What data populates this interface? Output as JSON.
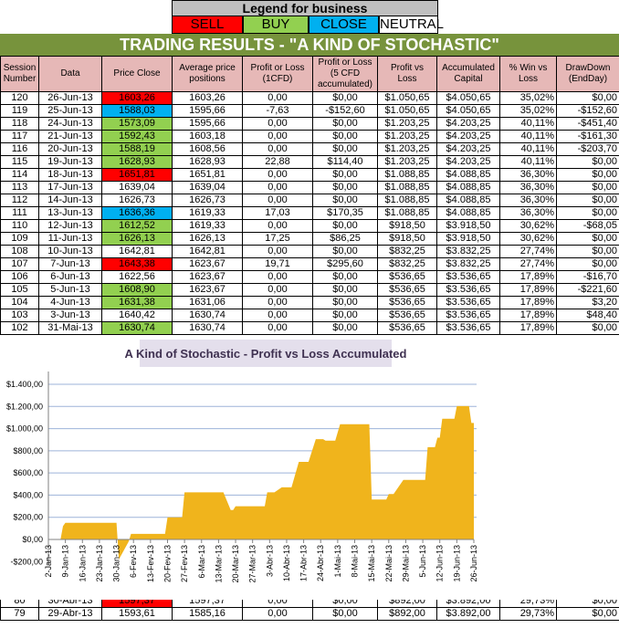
{
  "legend": {
    "title": "Legend for business",
    "items": [
      {
        "label": "SELL",
        "color": "#ff0000"
      },
      {
        "label": "BUY",
        "color": "#92d050"
      },
      {
        "label": "CLOSE",
        "color": "#00b0f0"
      },
      {
        "label": "NEUTRAL",
        "color": "#ffffff"
      }
    ]
  },
  "title": "TRADING RESULTS - \"A KIND OF STOCHASTIC\"",
  "columns": [
    "Session Number",
    "Data",
    "Price Close",
    "Average price positions",
    "Profit or Loss (1CFD)",
    "Profit or Loss (5 CFD accumulated)",
    "Profit vs Loss",
    "Accumulated Capital",
    "% Win vs Loss",
    "DrawDown (EndDay)"
  ],
  "rows": [
    {
      "session": "120",
      "date": "26-Jun-13",
      "price": "1603,26",
      "signal": "SELL",
      "avg": "1603,26",
      "pl1": "0,00",
      "pl5": "$0,00",
      "pvl": "$1.050,65",
      "capital": "$4.050,65",
      "win": "35,02%",
      "dd": "$0,00"
    },
    {
      "session": "119",
      "date": "25-Jun-13",
      "price": "1588,03",
      "signal": "CLOSE",
      "avg": "1595,66",
      "pl1": "-7,63",
      "pl5": "-$152,60",
      "pvl": "$1.050,65",
      "capital": "$4.050,65",
      "win": "35,02%",
      "dd": "-$152,60"
    },
    {
      "session": "118",
      "date": "24-Jun-13",
      "price": "1573,09",
      "signal": "BUY",
      "avg": "1595,66",
      "pl1": "0,00",
      "pl5": "$0,00",
      "pvl": "$1.203,25",
      "capital": "$4.203,25",
      "win": "40,11%",
      "dd": "-$451,40"
    },
    {
      "session": "117",
      "date": "21-Jun-13",
      "price": "1592,43",
      "signal": "BUY",
      "avg": "1603,18",
      "pl1": "0,00",
      "pl5": "$0,00",
      "pvl": "$1.203,25",
      "capital": "$4.203,25",
      "win": "40,11%",
      "dd": "-$161,30"
    },
    {
      "session": "116",
      "date": "20-Jun-13",
      "price": "1588,19",
      "signal": "BUY",
      "avg": "1608,56",
      "pl1": "0,00",
      "pl5": "$0,00",
      "pvl": "$1.203,25",
      "capital": "$4.203,25",
      "win": "40,11%",
      "dd": "-$203,70"
    },
    {
      "session": "115",
      "date": "19-Jun-13",
      "price": "1628,93",
      "signal": "BUY",
      "avg": "1628,93",
      "pl1": "22,88",
      "pl5": "$114,40",
      "pvl": "$1.203,25",
      "capital": "$4.203,25",
      "win": "40,11%",
      "dd": "$0,00"
    },
    {
      "session": "114",
      "date": "18-Jun-13",
      "price": "1651,81",
      "signal": "SELL",
      "avg": "1651,81",
      "pl1": "0,00",
      "pl5": "$0,00",
      "pvl": "$1.088,85",
      "capital": "$4.088,85",
      "win": "36,30%",
      "dd": "$0,00"
    },
    {
      "session": "113",
      "date": "17-Jun-13",
      "price": "1639,04",
      "signal": "NEUTRAL",
      "avg": "1639,04",
      "pl1": "0,00",
      "pl5": "$0,00",
      "pvl": "$1.088,85",
      "capital": "$4.088,85",
      "win": "36,30%",
      "dd": "$0,00"
    },
    {
      "session": "112",
      "date": "14-Jun-13",
      "price": "1626,73",
      "signal": "NEUTRAL",
      "avg": "1626,73",
      "pl1": "0,00",
      "pl5": "$0,00",
      "pvl": "$1.088,85",
      "capital": "$4.088,85",
      "win": "36,30%",
      "dd": "$0,00"
    },
    {
      "session": "111",
      "date": "13-Jun-13",
      "price": "1636,36",
      "signal": "CLOSE",
      "avg": "1619,33",
      "pl1": "17,03",
      "pl5": "$170,35",
      "pvl": "$1.088,85",
      "capital": "$4.088,85",
      "win": "36,30%",
      "dd": "$0,00"
    },
    {
      "session": "110",
      "date": "12-Jun-13",
      "price": "1612,52",
      "signal": "BUY",
      "avg": "1619,33",
      "pl1": "0,00",
      "pl5": "$0,00",
      "pvl": "$918,50",
      "capital": "$3.918,50",
      "win": "30,62%",
      "dd": "-$68,05"
    },
    {
      "session": "109",
      "date": "11-Jun-13",
      "price": "1626,13",
      "signal": "BUY",
      "avg": "1626,13",
      "pl1": "17,25",
      "pl5": "$86,25",
      "pvl": "$918,50",
      "capital": "$3.918,50",
      "win": "30,62%",
      "dd": "$0,00"
    },
    {
      "session": "108",
      "date": "10-Jun-13",
      "price": "1642,81",
      "signal": "NEUTRAL",
      "avg": "1642,81",
      "pl1": "0,00",
      "pl5": "$0,00",
      "pvl": "$832,25",
      "capital": "$3.832,25",
      "win": "27,74%",
      "dd": "$0,00"
    },
    {
      "session": "107",
      "date": "7-Jun-13",
      "price": "1643,38",
      "signal": "SELL",
      "avg": "1623,67",
      "pl1": "19,71",
      "pl5": "$295,60",
      "pvl": "$832,25",
      "capital": "$3.832,25",
      "win": "27,74%",
      "dd": "$0,00"
    },
    {
      "session": "106",
      "date": "6-Jun-13",
      "price": "1622,56",
      "signal": "NEUTRAL",
      "avg": "1623,67",
      "pl1": "0,00",
      "pl5": "$0,00",
      "pvl": "$536,65",
      "capital": "$3.536,65",
      "win": "17,89%",
      "dd": "-$16,70"
    },
    {
      "session": "105",
      "date": "5-Jun-13",
      "price": "1608,90",
      "signal": "BUY",
      "avg": "1623,67",
      "pl1": "0,00",
      "pl5": "$0,00",
      "pvl": "$536,65",
      "capital": "$3.536,65",
      "win": "17,89%",
      "dd": "-$221,60"
    },
    {
      "session": "104",
      "date": "4-Jun-13",
      "price": "1631,38",
      "signal": "BUY",
      "avg": "1631,06",
      "pl1": "0,00",
      "pl5": "$0,00",
      "pvl": "$536,65",
      "capital": "$3.536,65",
      "win": "17,89%",
      "dd": "$3,20"
    },
    {
      "session": "103",
      "date": "3-Jun-13",
      "price": "1640,42",
      "signal": "NEUTRAL",
      "avg": "1630,74",
      "pl1": "0,00",
      "pl5": "$0,00",
      "pvl": "$536,65",
      "capital": "$3.536,65",
      "win": "17,89%",
      "dd": "$48,40"
    },
    {
      "session": "102",
      "date": "31-Mai-13",
      "price": "1630,74",
      "signal": "BUY",
      "avg": "1630,74",
      "pl1": "0,00",
      "pl5": "$0,00",
      "pvl": "$536,65",
      "capital": "$3.536,65",
      "win": "17,89%",
      "dd": "$0,00"
    }
  ],
  "bottom_rows": [
    {
      "session": "80",
      "date": "30-Abr-13",
      "price": "1597,37",
      "signal": "SELL",
      "avg": "1597,37",
      "pl1": "0,00",
      "pl5": "$0,00",
      "pvl": "$892,00",
      "capital": "$3.892,00",
      "win": "29,73%",
      "dd": "$0,00"
    },
    {
      "session": "79",
      "date": "29-Abr-13",
      "price": "1593,61",
      "signal": "NEUTRAL",
      "avg": "1585,16",
      "pl1": "0,00",
      "pl5": "$0,00",
      "pvl": "$892,00",
      "capital": "$3.892,00",
      "win": "29,73%",
      "dd": "$0,00"
    }
  ],
  "chart_data": {
    "type": "area",
    "title": "A Kind of Stochastic - Profit vs Loss Accumulated",
    "fill_color": "#f0b41c",
    "grid": true,
    "ylim": [
      -200,
      1400
    ],
    "yticks": [
      "$1.400,00",
      "$1.200,00",
      "$1.000,00",
      "$800,00",
      "$600,00",
      "$400,00",
      "$200,00",
      "$0,00",
      "-$200,00"
    ],
    "ytick_values": [
      1400,
      1200,
      1000,
      800,
      600,
      400,
      200,
      0,
      -200
    ],
    "xlim": [
      "2013-01-02",
      "2013-06-26"
    ],
    "xticks": [
      "2-Jan-13",
      "9-Jan-13",
      "16-Jan-13",
      "23-Jan-13",
      "30-Jan-13",
      "6-Fev-13",
      "13-Fev-13",
      "20-Fev-13",
      "27-Fev-13",
      "6-Mar-13",
      "13-Mar-13",
      "20-Mar-13",
      "27-Mar-13",
      "3-Abr-13",
      "10-Abr-13",
      "17-Abr-13",
      "24-Abr-13",
      "1-Mai-13",
      "8-Mai-13",
      "15-Mai-13",
      "22-Mai-13",
      "29-Mai-13",
      "5-Jun-13",
      "12-Jun-13",
      "19-Jun-13",
      "26-Jun-13"
    ],
    "points": [
      [
        "2013-01-07",
        0
      ],
      [
        "2013-01-08",
        120
      ],
      [
        "2013-01-09",
        150
      ],
      [
        "2013-01-30",
        150
      ],
      [
        "2013-01-31",
        -180
      ],
      [
        "2013-02-04",
        -20
      ],
      [
        "2013-02-05",
        50
      ],
      [
        "2013-02-19",
        50
      ],
      [
        "2013-02-20",
        200
      ],
      [
        "2013-02-26",
        200
      ],
      [
        "2013-02-27",
        425
      ],
      [
        "2013-03-15",
        425
      ],
      [
        "2013-03-18",
        265
      ],
      [
        "2013-03-19",
        265
      ],
      [
        "2013-03-20",
        300
      ],
      [
        "2013-04-01",
        300
      ],
      [
        "2013-04-02",
        425
      ],
      [
        "2013-04-05",
        425
      ],
      [
        "2013-04-08",
        470
      ],
      [
        "2013-04-12",
        470
      ],
      [
        "2013-04-15",
        700
      ],
      [
        "2013-04-19",
        700
      ],
      [
        "2013-04-22",
        905
      ],
      [
        "2013-04-25",
        905
      ],
      [
        "2013-04-26",
        892
      ],
      [
        "2013-04-30",
        892
      ],
      [
        "2013-05-02",
        1040
      ],
      [
        "2013-05-14",
        1040
      ],
      [
        "2013-05-15",
        360
      ],
      [
        "2013-05-21",
        360
      ],
      [
        "2013-05-22",
        410
      ],
      [
        "2013-05-24",
        410
      ],
      [
        "2013-05-28",
        536.65
      ],
      [
        "2013-06-06",
        536.65
      ],
      [
        "2013-06-07",
        832.25
      ],
      [
        "2013-06-10",
        832.25
      ],
      [
        "2013-06-11",
        918.5
      ],
      [
        "2013-06-12",
        918.5
      ],
      [
        "2013-06-13",
        1088.85
      ],
      [
        "2013-06-18",
        1088.85
      ],
      [
        "2013-06-19",
        1203.25
      ],
      [
        "2013-06-24",
        1203.25
      ],
      [
        "2013-06-25",
        1050.65
      ],
      [
        "2013-06-26",
        1050.65
      ]
    ]
  }
}
